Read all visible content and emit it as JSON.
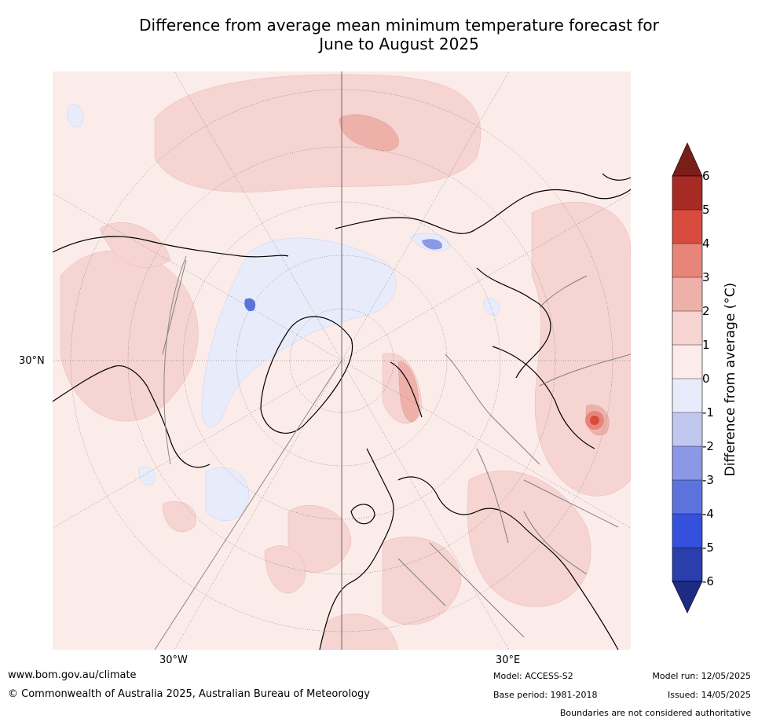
{
  "title_line1": "Difference from average mean minimum temperature forecast for",
  "title_line2": "June to August 2025",
  "map": {
    "projection": "north-polar-stereographic",
    "lat_label": "30°N",
    "lon_labels": [
      "30°W",
      "30°E"
    ]
  },
  "colorbar": {
    "label": "Difference from average (°C)",
    "ticks": [
      "6",
      "5",
      "4",
      "3",
      "2",
      "1",
      "0",
      "-1",
      "-2",
      "-3",
      "-4",
      "-5",
      "-6"
    ],
    "colors": {
      "above_6": "#7a1e1a",
      "5_to_6": "#a82a24",
      "4_to_5": "#d94b3f",
      "3_to_4": "#e7857b",
      "2_to_3": "#eeb1aa",
      "1_to_2": "#f5d4d1",
      "0_to_1": "#fbecea",
      "-1_to_0": "#e8ecfa",
      "-2_to_-1": "#c0c8f0",
      "-3_to_-2": "#8a98e6",
      "-4_to_-3": "#5d73dc",
      "-5_to_-4": "#3550dc",
      "-6_to_-5": "#2a3eac",
      "below_-6": "#1e2b82"
    }
  },
  "footer": {
    "url": "www.bom.gov.au/climate",
    "copyright": "© Commonwealth of Australia 2025, Australian Bureau of Meteorology",
    "model": "Model: ACCESS-S2",
    "base_period": "Base period: 1981-2018",
    "model_run": "Model run: 12/05/2025",
    "issued": "Issued: 14/05/2025",
    "disclaimer": "Boundaries are not considered authoritative"
  }
}
